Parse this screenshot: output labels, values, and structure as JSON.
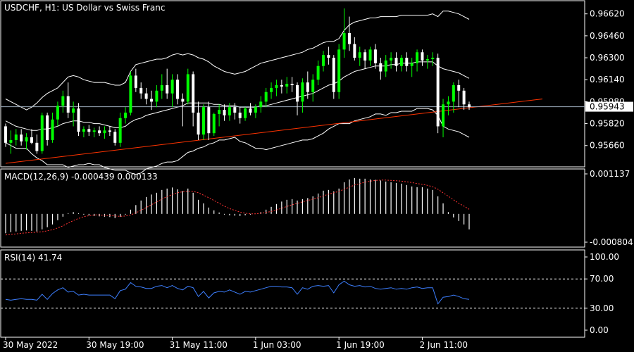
{
  "header": {
    "symbol_label": "USDCHF, H1:  US Dollar vs Swiss Franc",
    "macd_label": "MACD(12,26,9) -0.000439 0.000133",
    "rsi_label": "RSI(14) 41.74"
  },
  "price_axis": {
    "ticks": [
      "0.96620",
      "0.96460",
      "0.96300",
      "0.96140",
      "0.95980",
      "0.95820",
      "0.95660"
    ],
    "current_price": "0.95943",
    "ylim": [
      0.9552,
      0.9668
    ]
  },
  "macd_axis": {
    "ticks": [
      "0.001137",
      "-0.000804"
    ]
  },
  "rsi_axis": {
    "ticks": [
      "100.00",
      "70.00",
      "30.00",
      "0.00"
    ],
    "levels": [
      70,
      30
    ]
  },
  "time_axis": {
    "ticks": [
      "30 May 2022",
      "30 May 19:00",
      "31 May 11:00",
      "1 Jun 03:00",
      "1 Jun 19:00",
      "2 Jun 11:00"
    ]
  },
  "colors": {
    "background": "#000000",
    "bull": "#00ff00",
    "bear": "#ffffff",
    "trendline": "#ff3300",
    "macd_signal": "#ff3333",
    "rsi": "#3d7fff",
    "grid": "#ffffff",
    "current_line": "#a0b0c0"
  },
  "chart_data": {
    "type": "candlestick",
    "timeframe": "H1",
    "candles": [
      [
        0.958,
        0.9582,
        0.9565,
        0.9568
      ],
      [
        0.9568,
        0.9577,
        0.956,
        0.957
      ],
      [
        0.957,
        0.9578,
        0.9566,
        0.9574
      ],
      [
        0.9574,
        0.9578,
        0.9566,
        0.9569
      ],
      [
        0.9569,
        0.9575,
        0.9563,
        0.9572
      ],
      [
        0.9572,
        0.9578,
        0.9567,
        0.9568
      ],
      [
        0.9568,
        0.9574,
        0.956,
        0.9562
      ],
      [
        0.9562,
        0.959,
        0.956,
        0.9588
      ],
      [
        0.9588,
        0.959,
        0.9566,
        0.957
      ],
      [
        0.957,
        0.959,
        0.9568,
        0.9585
      ],
      [
        0.9585,
        0.9598,
        0.958,
        0.9595
      ],
      [
        0.9595,
        0.9606,
        0.959,
        0.9602
      ],
      [
        0.9602,
        0.9612,
        0.9586,
        0.959
      ],
      [
        0.959,
        0.9598,
        0.958,
        0.9593
      ],
      [
        0.9593,
        0.9597,
        0.9573,
        0.9576
      ],
      [
        0.9576,
        0.958,
        0.9572,
        0.9578
      ],
      [
        0.9578,
        0.9581,
        0.9573,
        0.9576
      ],
      [
        0.9576,
        0.9579,
        0.9572,
        0.9577
      ],
      [
        0.9577,
        0.958,
        0.9573,
        0.9575
      ],
      [
        0.9575,
        0.958,
        0.9571,
        0.9577
      ],
      [
        0.9577,
        0.958,
        0.9573,
        0.9576
      ],
      [
        0.9576,
        0.9578,
        0.9566,
        0.9568
      ],
      [
        0.9568,
        0.959,
        0.9565,
        0.9586
      ],
      [
        0.9586,
        0.9594,
        0.9582,
        0.959
      ],
      [
        0.959,
        0.962,
        0.9588,
        0.9617
      ],
      [
        0.9617,
        0.9622,
        0.9605,
        0.9608
      ],
      [
        0.9608,
        0.9612,
        0.96,
        0.9604
      ],
      [
        0.9604,
        0.9608,
        0.9596,
        0.96
      ],
      [
        0.96,
        0.9606,
        0.9592,
        0.9598
      ],
      [
        0.9598,
        0.961,
        0.9594,
        0.9606
      ],
      [
        0.9606,
        0.9618,
        0.96,
        0.961
      ],
      [
        0.961,
        0.9622,
        0.96,
        0.9604
      ],
      [
        0.9604,
        0.9618,
        0.9594,
        0.9614
      ],
      [
        0.9614,
        0.9618,
        0.9596,
        0.96
      ],
      [
        0.96,
        0.9604,
        0.958,
        0.9598
      ],
      [
        0.9598,
        0.9622,
        0.9596,
        0.9618
      ],
      [
        0.9618,
        0.962,
        0.958,
        0.959
      ],
      [
        0.959,
        0.9598,
        0.957,
        0.9574
      ],
      [
        0.9574,
        0.9596,
        0.957,
        0.9594
      ],
      [
        0.9594,
        0.9598,
        0.957,
        0.9575
      ],
      [
        0.9575,
        0.959,
        0.9573,
        0.9589
      ],
      [
        0.9589,
        0.9596,
        0.958,
        0.9592
      ],
      [
        0.9592,
        0.9596,
        0.9584,
        0.9588
      ],
      [
        0.9588,
        0.9597,
        0.9584,
        0.9594
      ],
      [
        0.9594,
        0.9597,
        0.9585,
        0.959
      ],
      [
        0.959,
        0.9594,
        0.9582,
        0.9586
      ],
      [
        0.9586,
        0.9594,
        0.9584,
        0.9593
      ],
      [
        0.9593,
        0.9597,
        0.9588,
        0.959
      ],
      [
        0.959,
        0.9596,
        0.9586,
        0.9594
      ],
      [
        0.9594,
        0.9602,
        0.959,
        0.9598
      ],
      [
        0.9598,
        0.9608,
        0.9594,
        0.9605
      ],
      [
        0.9605,
        0.9612,
        0.96,
        0.9608
      ],
      [
        0.9608,
        0.9614,
        0.9602,
        0.961
      ],
      [
        0.961,
        0.9614,
        0.9604,
        0.9609
      ],
      [
        0.9609,
        0.9616,
        0.9604,
        0.9611
      ],
      [
        0.9611,
        0.9616,
        0.9605,
        0.961
      ],
      [
        0.961,
        0.9612,
        0.9588,
        0.9598
      ],
      [
        0.9598,
        0.9615,
        0.959,
        0.9612
      ],
      [
        0.9612,
        0.962,
        0.96,
        0.9605
      ],
      [
        0.9605,
        0.9618,
        0.9598,
        0.9614
      ],
      [
        0.9614,
        0.9628,
        0.961,
        0.9624
      ],
      [
        0.9624,
        0.9635,
        0.962,
        0.9632
      ],
      [
        0.9632,
        0.9638,
        0.9625,
        0.963
      ],
      [
        0.963,
        0.9632,
        0.96,
        0.9605
      ],
      [
        0.9605,
        0.964,
        0.96,
        0.9636
      ],
      [
        0.9636,
        0.9666,
        0.963,
        0.9648
      ],
      [
        0.9648,
        0.966,
        0.9635,
        0.964
      ],
      [
        0.964,
        0.9645,
        0.9628,
        0.963
      ],
      [
        0.963,
        0.9638,
        0.9624,
        0.9634
      ],
      [
        0.9634,
        0.9636,
        0.9622,
        0.9628
      ],
      [
        0.9628,
        0.9638,
        0.9624,
        0.9636
      ],
      [
        0.9636,
        0.964,
        0.9622,
        0.9626
      ],
      [
        0.9626,
        0.963,
        0.9614,
        0.962
      ],
      [
        0.962,
        0.9632,
        0.9616,
        0.9628
      ],
      [
        0.9628,
        0.9634,
        0.9622,
        0.963
      ],
      [
        0.963,
        0.9634,
        0.962,
        0.9624
      ],
      [
        0.9624,
        0.9632,
        0.962,
        0.963
      ],
      [
        0.963,
        0.9634,
        0.962,
        0.9624
      ],
      [
        0.9624,
        0.963,
        0.9616,
        0.9626
      ],
      [
        0.9626,
        0.9636,
        0.962,
        0.9634
      ],
      [
        0.9634,
        0.9636,
        0.9624,
        0.9628
      ],
      [
        0.9628,
        0.9632,
        0.9622,
        0.9629
      ],
      [
        0.9629,
        0.9634,
        0.9624,
        0.963
      ],
      [
        0.963,
        0.9633,
        0.9575,
        0.958
      ],
      [
        0.958,
        0.96,
        0.9572,
        0.9596
      ],
      [
        0.9596,
        0.9602,
        0.9588,
        0.9598
      ],
      [
        0.9598,
        0.9612,
        0.959,
        0.961
      ],
      [
        0.961,
        0.9614,
        0.9594,
        0.9606
      ],
      [
        0.9606,
        0.9608,
        0.9592,
        0.9596
      ],
      [
        0.9596,
        0.9598,
        0.9592,
        0.9594
      ]
    ],
    "bollinger_upper": [
      0.96,
      0.9598,
      0.9596,
      0.9594,
      0.9592,
      0.9594,
      0.9597,
      0.9601,
      0.9604,
      0.9606,
      0.9608,
      0.9612,
      0.9616,
      0.9617,
      0.9616,
      0.9614,
      0.9613,
      0.9612,
      0.9612,
      0.9612,
      0.9611,
      0.961,
      0.961,
      0.9612,
      0.962,
      0.9625,
      0.9626,
      0.9627,
      0.9628,
      0.9629,
      0.9629,
      0.963,
      0.9632,
      0.9633,
      0.9632,
      0.9633,
      0.9632,
      0.963,
      0.9629,
      0.9627,
      0.9624,
      0.9622,
      0.962,
      0.9619,
      0.9618,
      0.9619,
      0.962,
      0.9622,
      0.9624,
      0.9626,
      0.9627,
      0.9628,
      0.9629,
      0.963,
      0.9631,
      0.9632,
      0.9633,
      0.9634,
      0.9636,
      0.9637,
      0.9639,
      0.9641,
      0.9642,
      0.9642,
      0.9644,
      0.965,
      0.9654,
      0.9656,
      0.9657,
      0.9658,
      0.9659,
      0.9659,
      0.966,
      0.966,
      0.966,
      0.966,
      0.9661,
      0.9661,
      0.9661,
      0.9661,
      0.9661,
      0.9661,
      0.9662,
      0.966,
      0.9664,
      0.9664,
      0.9663,
      0.9662,
      0.966,
      0.9658
    ],
    "bollinger_middle": [
      0.9584,
      0.9582,
      0.958,
      0.9579,
      0.9578,
      0.9577,
      0.9577,
      0.9578,
      0.9578,
      0.9579,
      0.958,
      0.9582,
      0.9583,
      0.9584,
      0.9584,
      0.9583,
      0.9583,
      0.9582,
      0.9582,
      0.9581,
      0.958,
      0.9579,
      0.9579,
      0.958,
      0.9583,
      0.9585,
      0.9586,
      0.9588,
      0.9589,
      0.959,
      0.9591,
      0.9592,
      0.9593,
      0.9594,
      0.9595,
      0.9597,
      0.9597,
      0.9597,
      0.9597,
      0.9597,
      0.9596,
      0.9596,
      0.9595,
      0.9595,
      0.9595,
      0.9594,
      0.9594,
      0.9594,
      0.9594,
      0.9595,
      0.9595,
      0.9596,
      0.9597,
      0.9598,
      0.9599,
      0.96,
      0.9601,
      0.9602,
      0.9603,
      0.9604,
      0.9606,
      0.9608,
      0.961,
      0.9611,
      0.9613,
      0.9616,
      0.9618,
      0.962,
      0.9621,
      0.9622,
      0.9623,
      0.9624,
      0.9624,
      0.9624,
      0.9625,
      0.9625,
      0.9626,
      0.9626,
      0.9626,
      0.9627,
      0.9627,
      0.9627,
      0.9627,
      0.9624,
      0.9622,
      0.9621,
      0.962,
      0.9619,
      0.9617,
      0.9615
    ],
    "bollinger_lower": [
      0.9568,
      0.9566,
      0.9564,
      0.9564,
      0.9564,
      0.956,
      0.9557,
      0.9555,
      0.9552,
      0.9552,
      0.9552,
      0.9552,
      0.955,
      0.9551,
      0.9552,
      0.9552,
      0.9553,
      0.9552,
      0.9552,
      0.955,
      0.9549,
      0.9548,
      0.9548,
      0.9548,
      0.9546,
      0.9545,
      0.9546,
      0.9549,
      0.955,
      0.9551,
      0.9553,
      0.9554,
      0.9554,
      0.9555,
      0.9558,
      0.9561,
      0.9562,
      0.9564,
      0.9565,
      0.9567,
      0.9568,
      0.957,
      0.957,
      0.9571,
      0.9572,
      0.9569,
      0.9568,
      0.9566,
      0.9564,
      0.9564,
      0.9563,
      0.9564,
      0.9565,
      0.9566,
      0.9567,
      0.9568,
      0.9569,
      0.957,
      0.957,
      0.9571,
      0.9573,
      0.9575,
      0.9578,
      0.958,
      0.9582,
      0.9582,
      0.9582,
      0.9584,
      0.9585,
      0.9586,
      0.9587,
      0.9589,
      0.9589,
      0.9588,
      0.959,
      0.959,
      0.9591,
      0.9591,
      0.9591,
      0.9593,
      0.9593,
      0.9593,
      0.9592,
      0.9588,
      0.958,
      0.9578,
      0.9577,
      0.9576,
      0.9574,
      0.9572
    ],
    "trendline": {
      "start_index": 0,
      "start_price": 0.9553,
      "end_index": 90,
      "end_price": 0.9594
    },
    "macd_histogram": [
      -0.00055,
      -0.00052,
      -0.0005,
      -0.00048,
      -0.00047,
      -0.00048,
      -0.0005,
      -0.00044,
      -0.00038,
      -0.0003,
      -0.00018,
      -8e-05,
      2e-05,
      5e-05,
      2e-05,
      -2e-05,
      -4e-05,
      -6e-05,
      -7e-05,
      -8e-05,
      -9e-05,
      -0.00012,
      -8e-05,
      -2e-05,
      0.00012,
      0.00025,
      0.00038,
      0.00048,
      0.00055,
      0.0006,
      0.00068,
      0.00072,
      0.00075,
      0.0007,
      0.00065,
      0.00072,
      0.0006,
      0.0004,
      0.0003,
      0.00018,
      0.0001,
      4e-05,
      -2e-05,
      -4e-05,
      -5e-05,
      -6e-05,
      -4e-05,
      -2e-05,
      0.0,
      5e-05,
      0.00012,
      0.0002,
      0.00028,
      0.00035,
      0.0004,
      0.00042,
      0.00038,
      0.00042,
      0.00045,
      0.0005,
      0.00058,
      0.00066,
      0.00068,
      0.00064,
      0.00072,
      0.0009,
      0.00098,
      0.00102,
      0.001,
      0.001,
      0.00098,
      0.00097,
      0.00095,
      0.00092,
      0.0009,
      0.00088,
      0.00086,
      0.00082,
      0.00078,
      0.00076,
      0.00076,
      0.00072,
      0.00068,
      0.0005,
      0.0003,
      5e-05,
      -0.0001,
      -0.0002,
      -0.0003,
      -0.00044
    ],
    "macd_signal": [
      -0.0006,
      -0.00058,
      -0.00057,
      -0.00055,
      -0.00054,
      -0.00053,
      -0.00052,
      -0.00051,
      -0.00048,
      -0.00045,
      -0.0004,
      -0.00034,
      -0.00026,
      -0.00019,
      -0.00013,
      -8e-05,
      -5e-05,
      -3e-05,
      -3e-05,
      -4e-05,
      -5e-05,
      -6e-05,
      -7e-05,
      -6e-05,
      -3e-05,
      3e-05,
      0.0001,
      0.00018,
      0.00026,
      0.00034,
      0.00042,
      0.00049,
      0.00055,
      0.0006,
      0.00063,
      0.00065,
      0.00064,
      0.0006,
      0.00053,
      0.00046,
      0.00038,
      0.0003,
      0.00022,
      0.00015,
      0.0001,
      5e-05,
      2e-05,
      0.0,
      0.0,
      2e-05,
      4e-05,
      7e-05,
      0.00011,
      0.00016,
      0.00021,
      0.00026,
      0.0003,
      0.00034,
      0.00038,
      0.00042,
      0.00046,
      0.00051,
      0.00056,
      0.0006,
      0.00064,
      0.0007,
      0.00076,
      0.00082,
      0.00086,
      0.0009,
      0.00093,
      0.00095,
      0.00096,
      0.00096,
      0.00095,
      0.00094,
      0.00093,
      0.00091,
      0.00089,
      0.00086,
      0.00084,
      0.00081,
      0.00077,
      0.0007,
      0.0006,
      0.0005,
      0.0004,
      0.0003,
      0.00022,
      0.00013
    ],
    "macd_range": [
      -0.000804,
      0.001137
    ],
    "rsi": [
      42,
      41,
      42,
      43,
      42,
      42,
      41,
      49,
      42,
      50,
      55,
      58,
      52,
      53,
      48,
      49,
      48,
      48,
      48,
      48,
      48,
      43,
      54,
      56,
      65,
      60,
      59,
      57,
      57,
      60,
      61,
      58,
      61,
      57,
      55,
      60,
      58,
      46,
      53,
      44,
      51,
      53,
      52,
      55,
      52,
      49,
      53,
      52,
      54,
      56,
      58,
      60,
      60,
      59,
      59,
      58,
      49,
      58,
      56,
      60,
      61,
      60,
      61,
      51,
      62,
      67,
      62,
      60,
      61,
      59,
      60,
      57,
      56,
      57,
      58,
      56,
      57,
      56,
      58,
      59,
      57,
      58,
      58,
      36,
      45,
      46,
      48,
      46,
      43,
      42
    ],
    "rsi_range": [
      0,
      100
    ]
  }
}
